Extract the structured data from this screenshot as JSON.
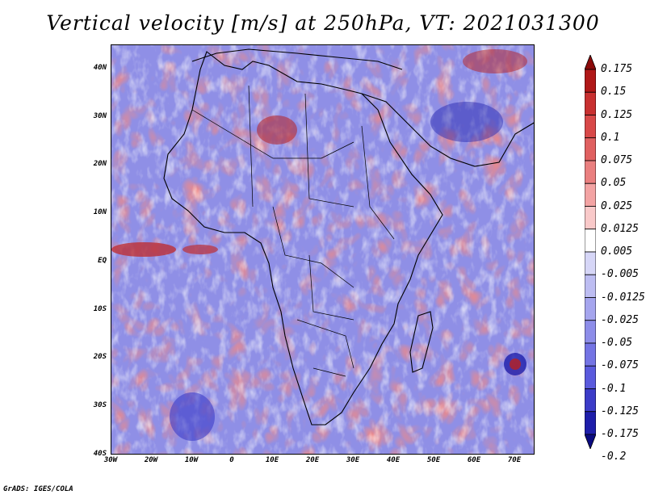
{
  "title": "Vertical velocity [m/s] at 250hPa, VT: 2021031300",
  "credit": "GrADS: IGES/COLA",
  "map": {
    "lon_range": [
      -30,
      75
    ],
    "lat_range": [
      -40,
      45
    ],
    "x_ticks": [
      {
        "lon": -30,
        "label": "30W"
      },
      {
        "lon": -20,
        "label": "20W"
      },
      {
        "lon": -10,
        "label": "10W"
      },
      {
        "lon": 0,
        "label": "0"
      },
      {
        "lon": 10,
        "label": "10E"
      },
      {
        "lon": 20,
        "label": "20E"
      },
      {
        "lon": 30,
        "label": "30E"
      },
      {
        "lon": 40,
        "label": "40E"
      },
      {
        "lon": 50,
        "label": "50E"
      },
      {
        "lon": 60,
        "label": "60E"
      },
      {
        "lon": 70,
        "label": "70E"
      }
    ],
    "y_ticks": [
      {
        "lat": 40,
        "label": "40N"
      },
      {
        "lat": 30,
        "label": "30N"
      },
      {
        "lat": 20,
        "label": "20N"
      },
      {
        "lat": 10,
        "label": "10N"
      },
      {
        "lat": 0,
        "label": "EQ"
      },
      {
        "lat": -10,
        "label": "10S"
      },
      {
        "lat": -20,
        "label": "20S"
      },
      {
        "lat": -30,
        "label": "30S"
      },
      {
        "lat": -40,
        "label": "40S"
      }
    ]
  },
  "colorbar": {
    "labels": [
      "0.175",
      "0.15",
      "0.125",
      "0.1",
      "0.075",
      "0.05",
      "0.025",
      "0.0125",
      "0.005",
      "-0.005",
      "-0.0125",
      "-0.025",
      "-0.05",
      "-0.075",
      "-0.1",
      "-0.125",
      "-0.175",
      "-0.2"
    ],
    "colors": [
      "#8b0a0a",
      "#b01818",
      "#c83030",
      "#d84848",
      "#e06060",
      "#ea7f7f",
      "#f3a3a3",
      "#f9c9c9",
      "#ffffff",
      "#d6d6f7",
      "#bdbdf2",
      "#a5a5ee",
      "#8d8de9",
      "#7474e4",
      "#5a5add",
      "#3c3cc8",
      "#1e1eaa",
      "#0a0a80"
    ]
  }
}
